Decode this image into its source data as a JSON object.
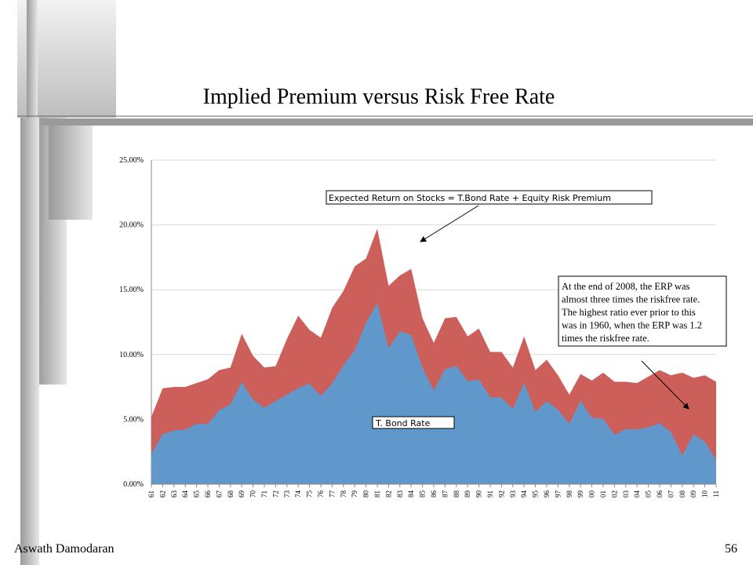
{
  "slide": {
    "title": "Implied Premium versus Risk Free Rate",
    "footer": "Aswath Damodaran",
    "page_number": "56"
  },
  "chart_data": {
    "type": "stacked_area",
    "categories": [
      "61",
      "62",
      "63",
      "64",
      "65",
      "66",
      "67",
      "68",
      "69",
      "70",
      "71",
      "72",
      "73",
      "74",
      "75",
      "76",
      "77",
      "78",
      "79",
      "80",
      "81",
      "82",
      "83",
      "84",
      "85",
      "86",
      "87",
      "88",
      "89",
      "90",
      "91",
      "92",
      "93",
      "94",
      "95",
      "96",
      "97",
      "98",
      "99",
      "00",
      "01",
      "02",
      "03",
      "04",
      "05",
      "06",
      "07",
      "08",
      "09",
      "10",
      "11"
    ],
    "series": [
      {
        "name": "T. Bond Rate",
        "color": "#6198cc",
        "values": [
          2.35,
          3.85,
          4.14,
          4.21,
          4.65,
          4.64,
          5.7,
          6.16,
          7.88,
          6.5,
          5.89,
          6.41,
          6.9,
          7.4,
          7.76,
          6.81,
          7.78,
          9.15,
          10.33,
          12.43,
          13.98,
          10.47,
          11.8,
          11.51,
          8.99,
          7.22,
          8.86,
          9.14,
          7.93,
          8.07,
          6.7,
          6.68,
          5.79,
          7.82,
          5.57,
          6.41,
          5.74,
          4.65,
          6.44,
          5.11,
          5.05,
          3.81,
          4.25,
          4.22,
          4.39,
          4.7,
          4.02,
          2.21,
          3.84,
          3.29,
          1.88
        ]
      },
      {
        "color": "#cc5f5a",
        "values": [
          2.85,
          3.55,
          3.36,
          3.29,
          3.15,
          3.46,
          3.1,
          2.84,
          3.72,
          3.4,
          3.11,
          2.69,
          4.3,
          5.6,
          4.14,
          4.49,
          5.82,
          5.75,
          6.47,
          4.97,
          5.72,
          4.83,
          4.3,
          5.09,
          3.81,
          3.68,
          3.94,
          3.76,
          3.47,
          3.93,
          3.5,
          3.52,
          3.21,
          3.58,
          3.23,
          3.19,
          2.66,
          2.25,
          2.06,
          2.89,
          3.55,
          4.09,
          3.65,
          3.58,
          3.91,
          4.1,
          4.38,
          6.39,
          4.36,
          5.11,
          6.02
        ]
      }
    ],
    "ylim": [
      0,
      25
    ],
    "yticks": [
      {
        "value": 0,
        "label": "0.00%"
      },
      {
        "value": 5,
        "label": "5.00%"
      },
      {
        "value": 10,
        "label": "10.00%"
      },
      {
        "value": 15,
        "label": "15.00%"
      },
      {
        "value": 20,
        "label": "20.00%"
      },
      {
        "value": 25,
        "label": "25.00%"
      }
    ],
    "grid": true,
    "annotations": [
      {
        "text": [
          "Expected Return on Stocks = T.Bond Rate + Equity Risk Premium"
        ]
      },
      {
        "text": [
          "At the end of 2008, the ERP was",
          "almost three times the riskfree rate.",
          "The highest ratio ever prior to this",
          "was in 1960, when the ERP was 1.2",
          "times the riskfree rate."
        ]
      }
    ]
  }
}
